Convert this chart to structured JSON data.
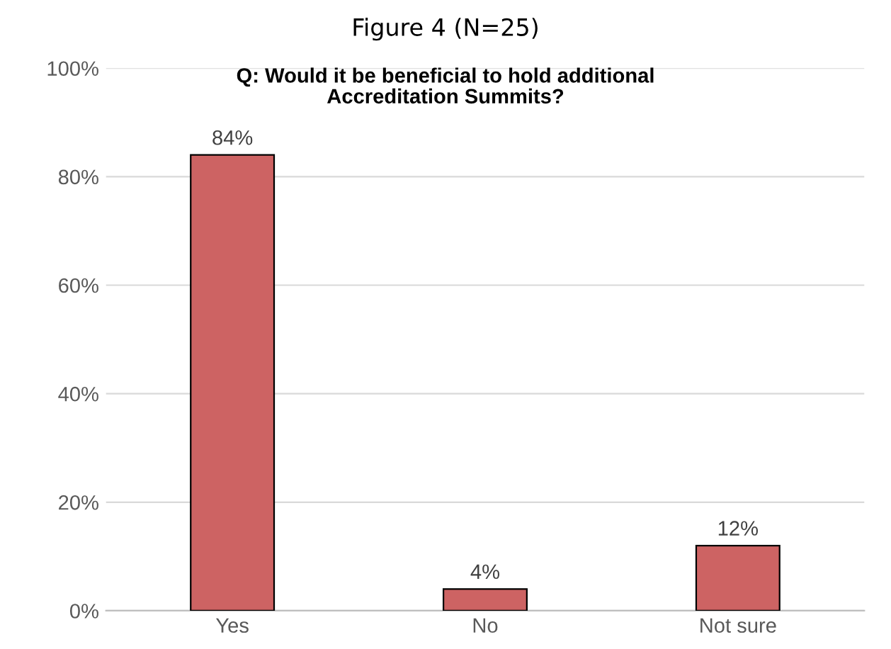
{
  "chart_data": {
    "type": "bar",
    "title": "Figure 4 (N=25)",
    "subtitle": "Q: Would it be beneficial to hold additional\nAccreditation Summits?",
    "categories": [
      "Yes",
      "No",
      "Not sure"
    ],
    "values": [
      84,
      4,
      12
    ],
    "color": "#cd6363",
    "value_labels": [
      "84%",
      "4%",
      "12%"
    ],
    "ylim": [
      0,
      100
    ],
    "yticks": [
      {
        "value": 0,
        "label": "0%"
      },
      {
        "value": 20,
        "label": "20%"
      },
      {
        "value": 40,
        "label": "40%"
      },
      {
        "value": 60,
        "label": "60%"
      },
      {
        "value": 80,
        "label": "80%"
      },
      {
        "value": 100,
        "label": "100%"
      }
    ],
    "grid": "y",
    "legend": false
  }
}
